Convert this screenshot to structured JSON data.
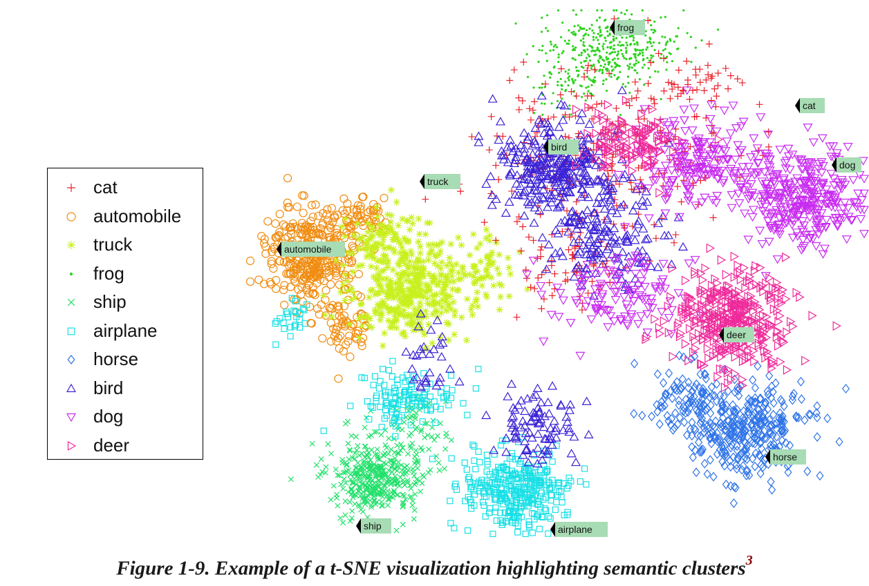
{
  "chart_data": {
    "type": "scatter",
    "title": "",
    "xlabel": "",
    "ylabel": "",
    "grid": false,
    "legend_placement": "left",
    "series": [
      {
        "name": "cat",
        "marker": "plus",
        "color": "#e8202a"
      },
      {
        "name": "automobile",
        "marker": "circle",
        "color": "#f08c10"
      },
      {
        "name": "truck",
        "marker": "asterisk",
        "color": "#c8f01e"
      },
      {
        "name": "frog",
        "marker": "dot",
        "color": "#2cd31c"
      },
      {
        "name": "ship",
        "marker": "x",
        "color": "#22e06a"
      },
      {
        "name": "airplane",
        "marker": "square",
        "color": "#18e0e6"
      },
      {
        "name": "horse",
        "marker": "diamond",
        "color": "#2f74e8"
      },
      {
        "name": "bird",
        "marker": "triangle-up",
        "color": "#3a22d6"
      },
      {
        "name": "dog",
        "marker": "triangle-down",
        "color": "#c82cf0"
      },
      {
        "name": "deer",
        "marker": "triangle-right",
        "color": "#ee2a9a"
      }
    ],
    "annotations": [
      "frog",
      "cat",
      "bird",
      "dog",
      "truck",
      "automobile",
      "deer",
      "horse",
      "ship",
      "airplane"
    ]
  },
  "caption": {
    "text": "Figure 1-9. Example of a t-SNE visualization highlighting semantic clusters",
    "footnote": "3"
  }
}
